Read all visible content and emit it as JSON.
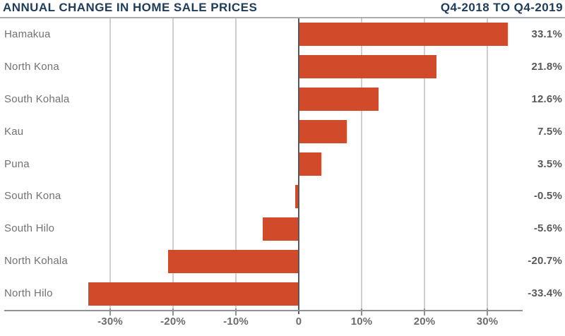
{
  "header": {
    "title": "ANNUAL CHANGE IN HOME SALE PRICES",
    "period": "Q4-2018 TO Q4-2019"
  },
  "chart_data": {
    "type": "bar",
    "orientation": "horizontal",
    "title": "ANNUAL CHANGE IN HOME SALE PRICES",
    "subtitle": "Q4-2018 TO Q4-2019",
    "categories": [
      "Hamakua",
      "North Kona",
      "South Kohala",
      "Kau",
      "Puna",
      "South Kona",
      "South Hilo",
      "North Kohala",
      "North Hilo"
    ],
    "values": [
      33.1,
      21.8,
      12.6,
      7.5,
      3.5,
      -0.5,
      -5.6,
      -20.7,
      -33.4
    ],
    "value_labels": [
      "33.1%",
      "21.8%",
      "12.6%",
      "7.5%",
      "3.5%",
      "-0.5%",
      "-5.6%",
      "-20.7%",
      "-33.4%"
    ],
    "xlabel": "",
    "ylabel": "",
    "xlim": [
      -35,
      35.5
    ],
    "x_ticks": [
      -30,
      -20,
      -10,
      0,
      10,
      20,
      30
    ],
    "x_tick_labels": [
      "-30%",
      "-20%",
      "-10%",
      "0",
      "10%",
      "20%",
      "30%"
    ],
    "grid": "vertical-gridlines-on",
    "legend": "none",
    "colors": {
      "bar": "#d14b2b",
      "title": "#1f3c5b",
      "category_label": "#717274",
      "value_label": "#58595c",
      "tick_label": "#6b6c6e",
      "gridline": "#cdcfd1",
      "zero_line": "#56585c",
      "axis_line": "#8f9296",
      "top_rule": "#a9adb0",
      "background": "#ffffff"
    }
  }
}
